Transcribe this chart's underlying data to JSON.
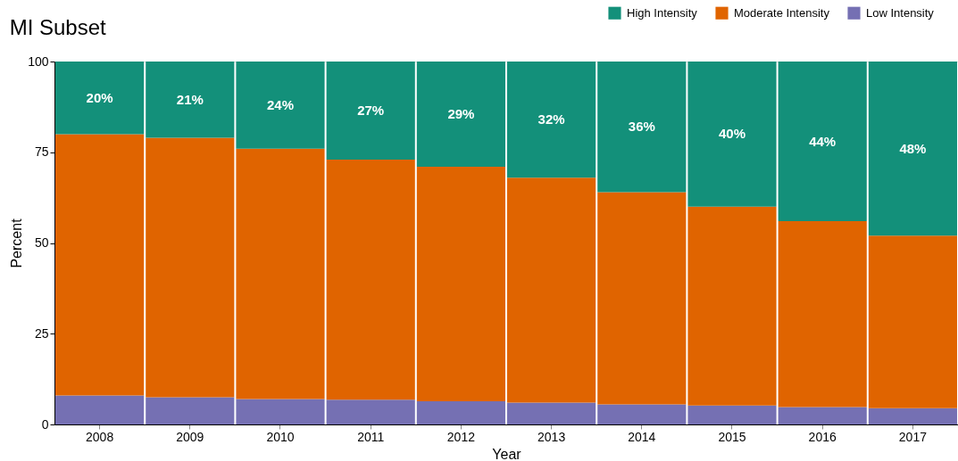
{
  "chart_data": {
    "type": "bar",
    "title": "MI Subset",
    "xlabel": "Year",
    "ylabel": "Percent",
    "categories": [
      "2008",
      "2009",
      "2010",
      "2011",
      "2012",
      "2013",
      "2014",
      "2015",
      "2016",
      "2017"
    ],
    "stacked": true,
    "series": [
      {
        "name": "Low Intensity",
        "color": "#7570b3",
        "values": [
          8,
          7.5,
          7,
          6.8,
          6.4,
          6,
          5.5,
          5.2,
          4.8,
          4.5
        ]
      },
      {
        "name": "Moderate Intensity",
        "color": "#e06400",
        "values": [
          72,
          71.5,
          69,
          66.2,
          64.6,
          62,
          58.5,
          54.8,
          51.2,
          47.5
        ]
      },
      {
        "name": "High Intensity",
        "color": "#13907a",
        "values": [
          20,
          21,
          24,
          27,
          29,
          32,
          36,
          40,
          44,
          48
        ],
        "value_labels": [
          "20%",
          "21%",
          "24%",
          "27%",
          "29%",
          "32%",
          "36%",
          "40%",
          "44%",
          "48%"
        ]
      }
    ],
    "ylim": [
      0,
      100
    ],
    "yticks": [
      0,
      25,
      50,
      75,
      100
    ],
    "grid": false,
    "legend": "top right"
  }
}
